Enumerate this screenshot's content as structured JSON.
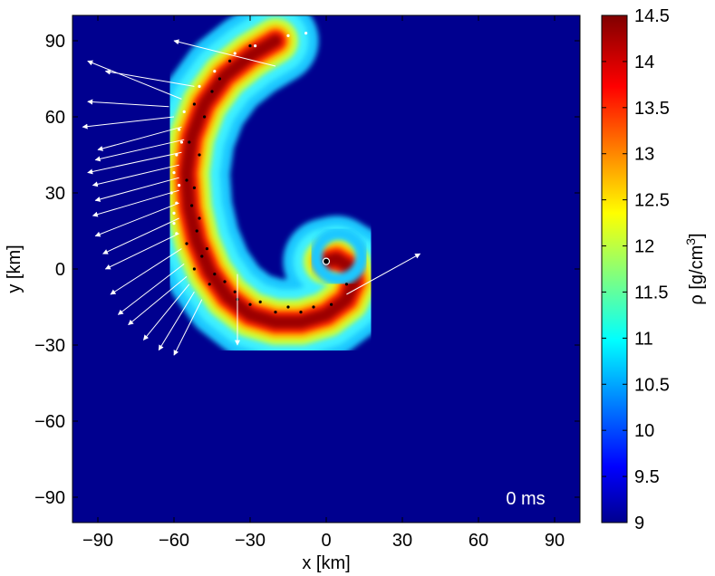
{
  "chart_data": {
    "type": "heatmap",
    "xlabel": "x [km]",
    "ylabel": "y [km]",
    "xlim": [
      -100,
      100
    ],
    "ylim": [
      -100,
      100
    ],
    "xticks": [
      -90,
      -60,
      -30,
      0,
      30,
      60,
      90
    ],
    "yticks": [
      -90,
      -60,
      -30,
      0,
      30,
      60,
      90
    ],
    "xtick_labels": [
      "−90",
      "−60",
      "−30",
      "0",
      "30",
      "60",
      "90"
    ],
    "ytick_labels": [
      "−90",
      "−60",
      "−30",
      "0",
      "30",
      "60",
      "90"
    ],
    "colorbar": {
      "label_main": "ρ [g/cm",
      "label_sup": "3",
      "label_end": "]",
      "min": 9,
      "max": 14.5,
      "ticks": [
        9,
        9.5,
        10,
        10.5,
        11,
        11.5,
        12,
        12.5,
        13,
        13.5,
        14,
        14.5
      ],
      "tick_labels": [
        "9",
        "9.5",
        "10",
        "10.5",
        "11",
        "11.5",
        "12",
        "12.5",
        "13",
        "13.5",
        "14",
        "14.5"
      ],
      "colormap": "jet"
    },
    "annotation": "0 ms",
    "background_color": "#00008f",
    "density_field": {
      "description_colormap": "jet",
      "spiral_arm_centerline": [
        [
          -20,
          90
        ],
        [
          -30,
          84
        ],
        [
          -40,
          76
        ],
        [
          -48,
          65
        ],
        [
          -53,
          52
        ],
        [
          -55,
          38
        ],
        [
          -54,
          24
        ],
        [
          -51,
          11
        ],
        [
          -46,
          -1
        ],
        [
          -39,
          -11
        ],
        [
          -30,
          -18
        ],
        [
          -20,
          -21
        ],
        [
          -10,
          -21
        ],
        [
          0,
          -18
        ],
        [
          8,
          -12
        ],
        [
          11,
          -5
        ],
        [
          9,
          1
        ],
        [
          4,
          4
        ],
        [
          0,
          3
        ]
      ],
      "arm_levels": [
        {
          "level": 10.5,
          "width_km": 34,
          "color": "#1ec8ff"
        },
        {
          "level": 11.0,
          "width_km": 26,
          "color": "#3cf0ff"
        },
        {
          "level": 12.0,
          "width_km": 18,
          "color": "#c8ff3c"
        },
        {
          "level": 12.8,
          "width_km": 13,
          "color": "#ffc800"
        },
        {
          "level": 13.5,
          "width_km": 9,
          "color": "#ff2800"
        },
        {
          "level": 14.2,
          "width_km": 5,
          "color": "#9c0000"
        }
      ]
    },
    "ejecta_arrows": [
      [
        [
          -57,
          67
        ],
        [
          -94,
          82
        ]
      ],
      [
        [
          -52,
          72
        ],
        [
          -87,
          78
        ]
      ],
      [
        [
          -60,
          60
        ],
        [
          -96,
          56
        ]
      ],
      [
        [
          -57,
          56
        ],
        [
          -90,
          47
        ]
      ],
      [
        [
          -56,
          51
        ],
        [
          -91,
          43
        ]
      ],
      [
        [
          -57,
          46
        ],
        [
          -94,
          38
        ]
      ],
      [
        [
          -58,
          41
        ],
        [
          -92,
          33
        ]
      ],
      [
        [
          -58,
          36
        ],
        [
          -91,
          27
        ]
      ],
      [
        [
          -58,
          31
        ],
        [
          -92,
          21
        ]
      ],
      [
        [
          -58,
          26
        ],
        [
          -91,
          13
        ]
      ],
      [
        [
          -58,
          20
        ],
        [
          -88,
          6
        ]
      ],
      [
        [
          -58,
          14
        ],
        [
          -87,
          0
        ]
      ],
      [
        [
          -57,
          8
        ],
        [
          -85,
          -10
        ]
      ],
      [
        [
          -56,
          2
        ],
        [
          -82,
          -18
        ]
      ],
      [
        [
          -55,
          -3
        ],
        [
          -78,
          -22
        ]
      ],
      [
        [
          -54,
          -6
        ],
        [
          -72,
          -28
        ]
      ],
      [
        [
          -52,
          -9
        ],
        [
          -66,
          -32
        ]
      ],
      [
        [
          -49,
          -12
        ],
        [
          -60,
          -34
        ]
      ],
      [
        [
          -35,
          -2
        ],
        [
          -35,
          -30
        ]
      ],
      [
        [
          8,
          -10
        ],
        [
          37,
          6
        ]
      ],
      [
        [
          -20,
          80
        ],
        [
          -60,
          90
        ]
      ],
      [
        [
          -62,
          64
        ],
        [
          -94,
          66
        ]
      ]
    ],
    "tracer_particles": {
      "black": [
        [
          -45,
          70
        ],
        [
          -48,
          60
        ],
        [
          -50,
          45
        ],
        [
          -52,
          32
        ],
        [
          -50,
          20
        ],
        [
          -47,
          8
        ],
        [
          -40,
          -5
        ],
        [
          -30,
          -14
        ],
        [
          -20,
          -17
        ],
        [
          -10,
          -17
        ],
        [
          2,
          -14
        ],
        [
          8,
          -6
        ],
        [
          -52,
          65
        ],
        [
          -54,
          50
        ],
        [
          -55,
          35
        ],
        [
          -53,
          25
        ],
        [
          -51,
          15
        ],
        [
          -49,
          5
        ],
        [
          -44,
          -2
        ],
        [
          -36,
          -9
        ],
        [
          -26,
          -13
        ],
        [
          -42,
          75
        ],
        [
          -38,
          82
        ],
        [
          -30,
          88
        ],
        [
          -55,
          10
        ],
        [
          -52,
          0
        ],
        [
          -46,
          -6
        ],
        [
          -35,
          -12
        ],
        [
          -15,
          -15
        ],
        [
          -5,
          -15
        ]
      ],
      "white": [
        [
          -58,
          55
        ],
        [
          -59,
          45
        ],
        [
          -60,
          38
        ],
        [
          -61,
          30
        ],
        [
          -60,
          22
        ],
        [
          -59,
          14
        ],
        [
          -56,
          62
        ],
        [
          -50,
          72
        ],
        [
          -44,
          78
        ],
        [
          -36,
          85
        ],
        [
          -28,
          88
        ],
        [
          -15,
          92
        ],
        [
          -8,
          93
        ],
        [
          -57,
          50
        ],
        [
          -58,
          33
        ],
        [
          -59,
          26
        ],
        [
          -60,
          18
        ]
      ]
    }
  }
}
